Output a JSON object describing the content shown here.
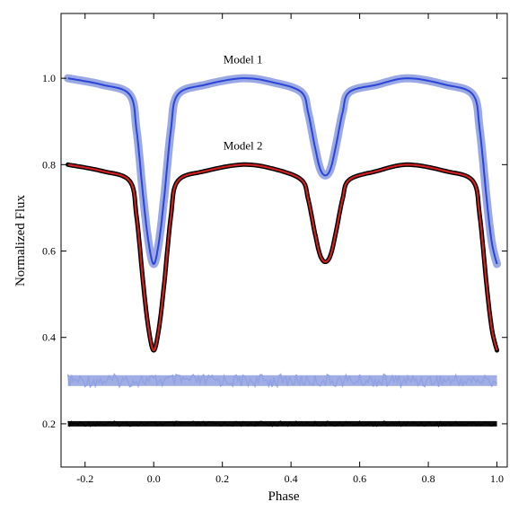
{
  "chart_data": {
    "type": "line",
    "title": "",
    "xlabel": "Phase",
    "ylabel": "Normalized Flux",
    "xlim": [
      -0.27,
      1.03
    ],
    "ylim": [
      0.1,
      1.15
    ],
    "xticks": [
      -0.2,
      0.0,
      0.2,
      0.4,
      0.6,
      0.8,
      1.0
    ],
    "xtick_labels": [
      "-0.2",
      "0.0",
      "0.2",
      "0.4",
      "0.6",
      "0.8",
      "1.0"
    ],
    "yticks": [
      0.2,
      0.4,
      0.6,
      0.8,
      1.0
    ],
    "ytick_labels": [
      "0.2",
      "0.4",
      "0.6",
      "0.8",
      "1.0"
    ],
    "grid": false,
    "colors": {
      "model1_obs": "#8fa0e0",
      "model1_fit": "#2a44d8",
      "model2_obs": "#000000",
      "model2_fit": "#d02020",
      "residual1": "#8fa0e0",
      "residual2": "#000000"
    },
    "annotations": [
      {
        "text": "Model 1",
        "x": 0.26,
        "y": 1.035
      },
      {
        "text": "Model 2",
        "x": 0.26,
        "y": 0.835
      }
    ],
    "series": [
      {
        "x": [
          -0.25,
          -0.15,
          -0.07,
          -0.05,
          -0.03,
          -0.015,
          0.0,
          0.015,
          0.03,
          0.05,
          0.07,
          0.15,
          0.26,
          0.35,
          0.43,
          0.45,
          0.47,
          0.485,
          0.5,
          0.515,
          0.53,
          0.55,
          0.57,
          0.65,
          0.74,
          0.85,
          0.93,
          0.95,
          0.97,
          0.985,
          1.0
        ],
        "values": [
          1.0,
          0.985,
          0.962,
          0.88,
          0.72,
          0.62,
          0.57,
          0.62,
          0.72,
          0.88,
          0.962,
          0.985,
          1.0,
          0.99,
          0.968,
          0.92,
          0.84,
          0.79,
          0.775,
          0.79,
          0.84,
          0.92,
          0.968,
          0.985,
          1.0,
          0.985,
          0.962,
          0.88,
          0.72,
          0.62,
          0.57
        ],
        "style": "observed-band"
      },
      {
        "x": [
          -0.25,
          -0.15,
          -0.07,
          -0.05,
          -0.03,
          -0.015,
          0.0,
          0.015,
          0.03,
          0.05,
          0.07,
          0.15,
          0.26,
          0.35,
          0.43,
          0.45,
          0.47,
          0.485,
          0.5,
          0.515,
          0.53,
          0.55,
          0.57,
          0.65,
          0.74,
          0.85,
          0.93,
          0.95,
          0.97,
          0.985,
          1.0
        ],
        "values": [
          1.0,
          0.985,
          0.962,
          0.88,
          0.72,
          0.62,
          0.57,
          0.62,
          0.72,
          0.88,
          0.962,
          0.985,
          1.0,
          0.99,
          0.968,
          0.92,
          0.84,
          0.79,
          0.775,
          0.79,
          0.84,
          0.92,
          0.968,
          0.985,
          1.0,
          0.985,
          0.962,
          0.88,
          0.72,
          0.62,
          0.57
        ],
        "style": "fit-line"
      },
      {
        "x": [
          -0.25,
          -0.15,
          -0.07,
          -0.05,
          -0.03,
          -0.015,
          0.0,
          0.015,
          0.03,
          0.05,
          0.07,
          0.15,
          0.26,
          0.35,
          0.43,
          0.45,
          0.47,
          0.485,
          0.5,
          0.515,
          0.53,
          0.55,
          0.57,
          0.65,
          0.74,
          0.85,
          0.93,
          0.95,
          0.97,
          0.985,
          1.0
        ],
        "values": [
          0.8,
          0.785,
          0.762,
          0.68,
          0.52,
          0.42,
          0.37,
          0.42,
          0.52,
          0.68,
          0.762,
          0.785,
          0.8,
          0.79,
          0.765,
          0.72,
          0.64,
          0.59,
          0.575,
          0.59,
          0.64,
          0.72,
          0.765,
          0.785,
          0.8,
          0.785,
          0.762,
          0.68,
          0.52,
          0.42,
          0.37
        ],
        "style": "observed-band"
      },
      {
        "x": [
          -0.25,
          -0.15,
          -0.07,
          -0.05,
          -0.03,
          -0.015,
          0.0,
          0.015,
          0.03,
          0.05,
          0.07,
          0.15,
          0.26,
          0.35,
          0.43,
          0.45,
          0.47,
          0.485,
          0.5,
          0.515,
          0.53,
          0.55,
          0.57,
          0.65,
          0.74,
          0.85,
          0.93,
          0.95,
          0.97,
          0.985,
          1.0
        ],
        "values": [
          0.8,
          0.785,
          0.762,
          0.68,
          0.52,
          0.42,
          0.37,
          0.42,
          0.52,
          0.68,
          0.762,
          0.785,
          0.8,
          0.79,
          0.765,
          0.72,
          0.64,
          0.59,
          0.575,
          0.59,
          0.64,
          0.72,
          0.765,
          0.785,
          0.8,
          0.785,
          0.762,
          0.68,
          0.52,
          0.42,
          0.37
        ],
        "style": "fit-line"
      },
      {
        "x": [
          -0.25,
          1.0
        ],
        "values": [
          0.3,
          0.3
        ],
        "style": "residual-band"
      },
      {
        "x": [
          -0.25,
          1.0
        ],
        "values": [
          0.2,
          0.2
        ],
        "style": "residual-band"
      }
    ]
  }
}
